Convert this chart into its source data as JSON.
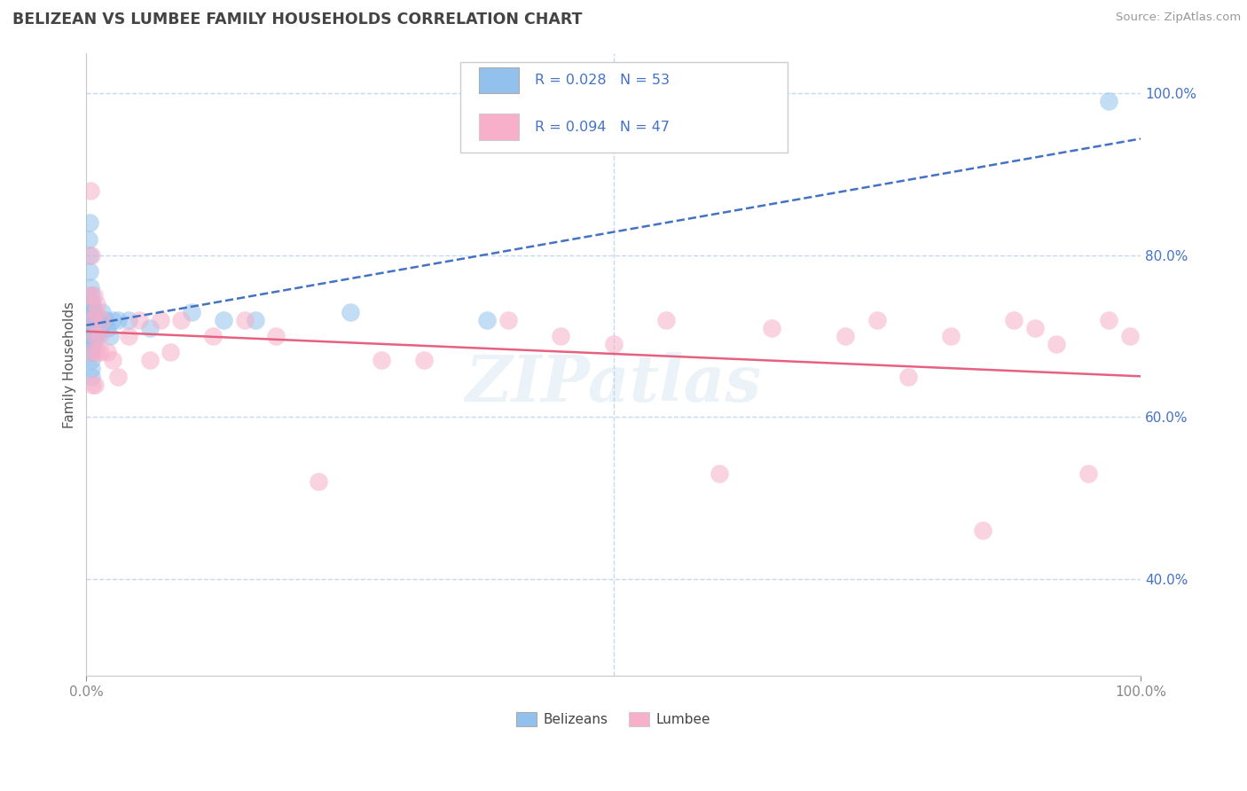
{
  "title": "BELIZEAN VS LUMBEE FAMILY HOUSEHOLDS CORRELATION CHART",
  "source": "Source: ZipAtlas.com",
  "ylabel": "Family Households",
  "legend_r1": "R = 0.028",
  "legend_n1": "N = 53",
  "legend_r2": "R = 0.094",
  "legend_n2": "N = 47",
  "legend_label1": "Belizeans",
  "legend_label2": "Lumbee",
  "xlim": [
    0,
    1.0
  ],
  "ylim": [
    0.28,
    1.05
  ],
  "xtick_positions": [
    0,
    1.0
  ],
  "xtick_labels": [
    "0.0%",
    "100.0%"
  ],
  "ytick_positions": [
    0.4,
    0.6,
    0.8,
    1.0
  ],
  "ytick_labels": [
    "40.0%",
    "60.0%",
    "80.0%",
    "100.0%"
  ],
  "blue_color": "#92C1ED",
  "pink_color": "#F7AFCA",
  "line_blue": "#4472C4",
  "line_pink": "#E86080",
  "watermark": "ZIPatlas",
  "background_color": "#ffffff",
  "grid_color": "#C5D9F1",
  "belizeans_x": [
    0.002,
    0.003,
    0.003,
    0.003,
    0.004,
    0.004,
    0.004,
    0.004,
    0.005,
    0.005,
    0.005,
    0.005,
    0.005,
    0.005,
    0.005,
    0.005,
    0.005,
    0.006,
    0.006,
    0.006,
    0.006,
    0.006,
    0.006,
    0.006,
    0.007,
    0.007,
    0.007,
    0.007,
    0.007,
    0.008,
    0.008,
    0.008,
    0.009,
    0.009,
    0.01,
    0.01,
    0.01,
    0.012,
    0.013,
    0.015,
    0.018,
    0.02,
    0.022,
    0.025,
    0.03,
    0.04,
    0.06,
    0.1,
    0.13,
    0.16,
    0.25,
    0.38,
    0.97
  ],
  "belizeans_y": [
    0.82,
    0.84,
    0.8,
    0.78,
    0.76,
    0.74,
    0.72,
    0.7,
    0.75,
    0.73,
    0.71,
    0.7,
    0.69,
    0.68,
    0.67,
    0.66,
    0.65,
    0.74,
    0.73,
    0.72,
    0.71,
    0.7,
    0.69,
    0.68,
    0.73,
    0.72,
    0.71,
    0.7,
    0.69,
    0.72,
    0.71,
    0.7,
    0.72,
    0.71,
    0.72,
    0.71,
    0.7,
    0.72,
    0.71,
    0.73,
    0.72,
    0.71,
    0.7,
    0.72,
    0.72,
    0.72,
    0.71,
    0.73,
    0.72,
    0.72,
    0.73,
    0.72,
    0.99
  ],
  "lumbee_x": [
    0.003,
    0.004,
    0.005,
    0.005,
    0.006,
    0.006,
    0.007,
    0.008,
    0.008,
    0.009,
    0.01,
    0.01,
    0.012,
    0.013,
    0.015,
    0.02,
    0.025,
    0.03,
    0.04,
    0.05,
    0.06,
    0.07,
    0.08,
    0.09,
    0.12,
    0.15,
    0.18,
    0.22,
    0.28,
    0.32,
    0.4,
    0.45,
    0.5,
    0.55,
    0.6,
    0.65,
    0.72,
    0.75,
    0.78,
    0.82,
    0.85,
    0.88,
    0.9,
    0.92,
    0.95,
    0.97,
    0.99
  ],
  "lumbee_y": [
    0.75,
    0.88,
    0.8,
    0.68,
    0.72,
    0.64,
    0.75,
    0.7,
    0.64,
    0.73,
    0.68,
    0.74,
    0.7,
    0.68,
    0.72,
    0.68,
    0.67,
    0.65,
    0.7,
    0.72,
    0.67,
    0.72,
    0.68,
    0.72,
    0.7,
    0.72,
    0.7,
    0.52,
    0.67,
    0.67,
    0.72,
    0.7,
    0.69,
    0.72,
    0.53,
    0.71,
    0.7,
    0.72,
    0.65,
    0.7,
    0.46,
    0.72,
    0.71,
    0.69,
    0.53,
    0.72,
    0.7
  ]
}
